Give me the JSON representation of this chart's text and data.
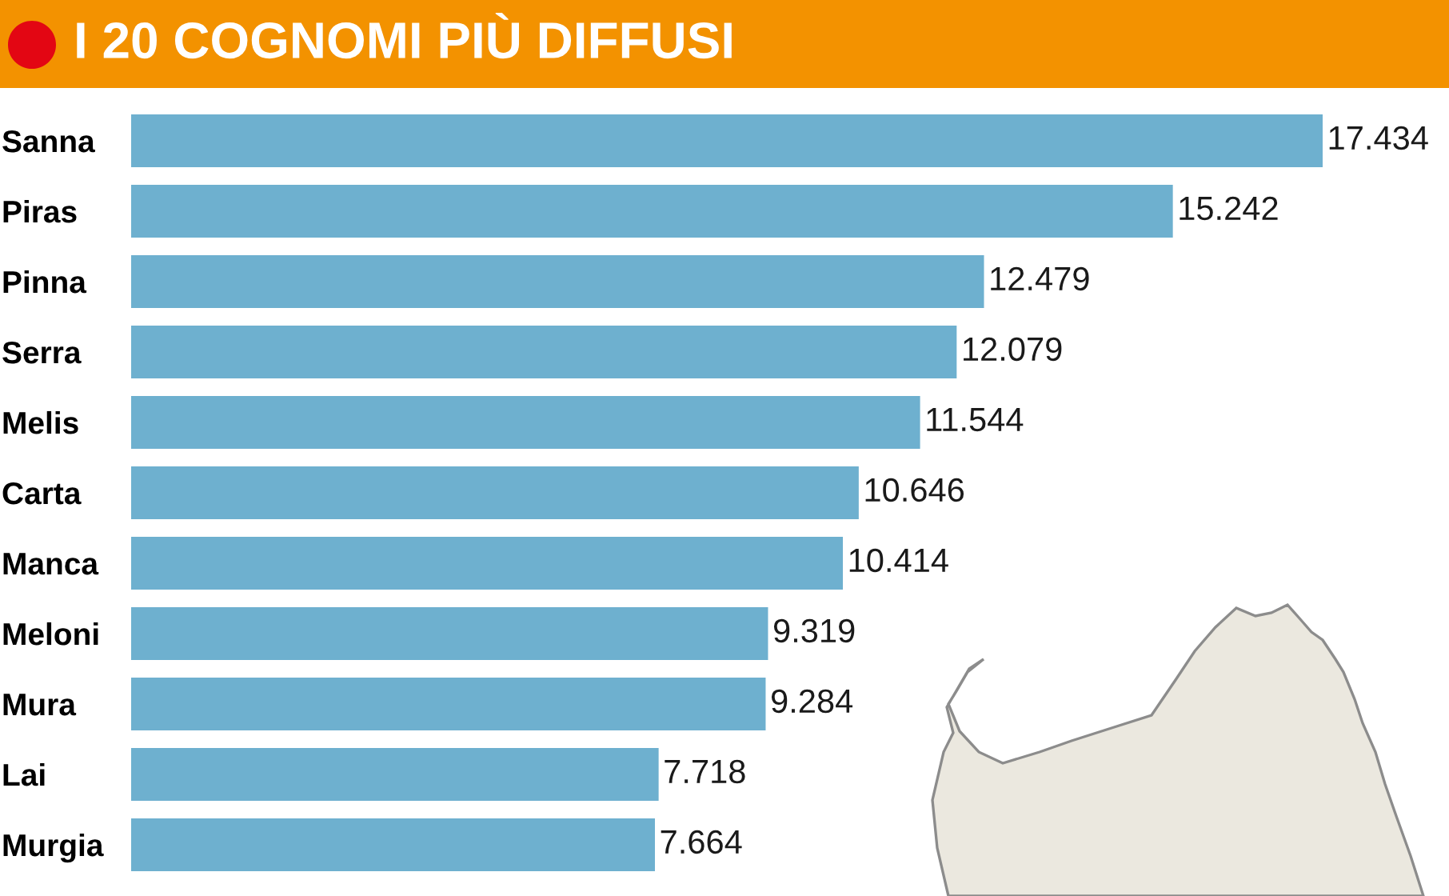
{
  "chart_data": {
    "type": "bar",
    "orientation": "horizontal",
    "title": "I 20 COGNOMI PIÙ DIFFUSI",
    "categories": [
      "Sanna",
      "Piras",
      "Pinna",
      "Serra",
      "Melis",
      "Carta",
      "Manca",
      "Meloni",
      "Mura",
      "Lai",
      "Murgia"
    ],
    "values": [
      17434,
      15242,
      12479,
      12079,
      11544,
      10646,
      10414,
      9319,
      9284,
      7718,
      7664
    ],
    "value_labels": [
      "17.434",
      "15.242",
      "12.479",
      "12.079",
      "11.544",
      "10.646",
      "10.414",
      "9.319",
      "9.284",
      "7.718",
      "7.664"
    ],
    "color": "#6eb0cf",
    "tick_labels": "y"
  }
}
